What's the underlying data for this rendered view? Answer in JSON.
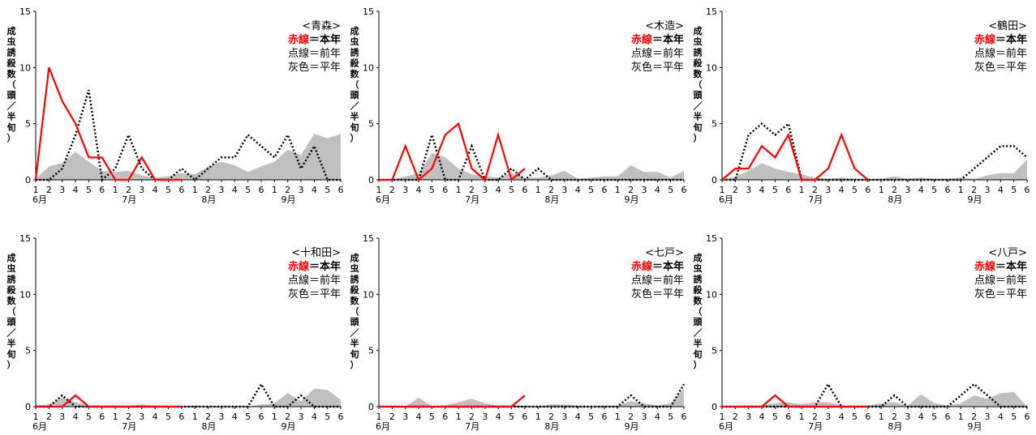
{
  "chart_data": [
    {
      "type": "area",
      "title": "<青森>",
      "ylabel": "成虫誘殺数（頭／半旬）",
      "ylim": [
        0,
        15
      ],
      "yticks": [
        "0",
        "5",
        "10",
        "15"
      ],
      "x_ticks": [
        "1",
        "2",
        "3",
        "4",
        "5",
        "6",
        "1",
        "2",
        "3",
        "4",
        "5",
        "6",
        "1",
        "2",
        "3",
        "4",
        "5",
        "6",
        "1",
        "2",
        "3",
        "4",
        "5",
        "6"
      ],
      "months": [
        "6月",
        "7月",
        "8月",
        "9月"
      ],
      "legend": {
        "this_year_red": "赤線",
        "this_year_eq": "＝本年",
        "last_year": "点線＝前年",
        "normal": "灰色＝平年"
      },
      "series": [
        {
          "key": "current",
          "values": [
            0,
            10,
            7,
            5,
            2,
            2,
            0,
            0,
            2,
            0,
            0,
            0
          ]
        },
        {
          "key": "previous",
          "values": [
            0,
            0,
            1,
            4,
            8,
            0,
            1,
            4,
            1,
            0,
            0,
            1,
            0,
            1,
            2,
            2,
            4,
            3,
            2,
            4,
            1,
            3,
            0,
            0
          ]
        },
        {
          "key": "normal",
          "values": [
            0.1,
            1.2,
            1.5,
            2.5,
            1.6,
            0.8,
            0.7,
            0.8,
            0.4,
            0.2,
            0.3,
            0.6,
            0.5,
            1.2,
            1.6,
            1.3,
            0.7,
            1.2,
            1.6,
            2.7,
            2.2,
            4.1,
            3.7,
            4.1
          ]
        }
      ]
    },
    {
      "type": "area",
      "title": "<木造>",
      "ylabel": "成虫誘殺数（頭／半旬）",
      "ylim": [
        0,
        15
      ],
      "yticks": [
        "0",
        "5",
        "10",
        "15"
      ],
      "x_ticks": [
        "1",
        "2",
        "3",
        "4",
        "5",
        "6",
        "1",
        "2",
        "3",
        "4",
        "5",
        "6",
        "1",
        "2",
        "3",
        "4",
        "5",
        "6",
        "1",
        "2",
        "3",
        "4",
        "5",
        "6"
      ],
      "months": [
        "6月",
        "7月",
        "8月",
        "9月"
      ],
      "legend": {
        "this_year_red": "赤線",
        "this_year_eq": "＝本年",
        "last_year": "点線＝前年",
        "normal": "灰色＝平年"
      },
      "series": [
        {
          "key": "current",
          "values": [
            0,
            0,
            3,
            0,
            1,
            4,
            5,
            1,
            0,
            4,
            0,
            1
          ]
        },
        {
          "key": "previous",
          "values": [
            0,
            0,
            0,
            0,
            4,
            0,
            0,
            3,
            0,
            0,
            1,
            0,
            1,
            0,
            0,
            0,
            0,
            0,
            0,
            0,
            0,
            0,
            0,
            0
          ]
        },
        {
          "key": "normal",
          "values": [
            0,
            0,
            0.3,
            0.6,
            2.4,
            2,
            1,
            0.5,
            0.3,
            0.2,
            0.6,
            0.2,
            0.2,
            0.4,
            0.8,
            0.1,
            0.2,
            0.3,
            0.3,
            1.3,
            0.7,
            0.7,
            0.2,
            0.8
          ]
        }
      ]
    },
    {
      "type": "area",
      "title": "<鶴田>",
      "ylabel": "成虫誘殺数（頭／半旬）",
      "ylim": [
        0,
        15
      ],
      "yticks": [
        "0",
        "5",
        "10",
        "15"
      ],
      "x_ticks": [
        "1",
        "2",
        "3",
        "4",
        "5",
        "6",
        "1",
        "2",
        "3",
        "4",
        "5",
        "6",
        "1",
        "2",
        "3",
        "4",
        "5",
        "6",
        "1",
        "2",
        "3",
        "4",
        "5",
        "6"
      ],
      "months": [
        "6月",
        "7月",
        "8月",
        "9月"
      ],
      "legend": {
        "this_year_red": "赤線",
        "this_year_eq": "＝本年",
        "last_year": "点線＝前年",
        "normal": "灰色＝平年"
      },
      "series": [
        {
          "key": "current",
          "values": [
            0,
            1,
            1,
            3,
            2,
            4,
            0,
            0,
            1,
            4,
            1,
            0
          ]
        },
        {
          "key": "previous",
          "values": [
            0,
            0,
            4,
            5,
            4,
            5,
            0,
            0,
            0,
            0,
            0,
            0,
            0,
            0,
            0,
            0,
            0,
            0,
            0,
            1,
            2,
            3,
            3,
            2
          ]
        },
        {
          "key": "normal",
          "values": [
            0,
            0.3,
            0.8,
            1.5,
            1,
            0.7,
            0.5,
            0.2,
            0.1,
            0.2,
            0.1,
            0.1,
            0.1,
            0.3,
            0.1,
            0.2,
            0.1,
            0.1,
            0.2,
            0.1,
            0.4,
            0.6,
            0.6,
            1.8
          ]
        }
      ]
    },
    {
      "type": "area",
      "title": "<十和田>",
      "ylabel": "成虫誘殺数（頭／半旬）",
      "ylim": [
        0,
        15
      ],
      "yticks": [
        "0",
        "5",
        "10",
        "15"
      ],
      "x_ticks": [
        "1",
        "2",
        "3",
        "4",
        "5",
        "6",
        "1",
        "2",
        "3",
        "4",
        "5",
        "6",
        "1",
        "2",
        "3",
        "4",
        "5",
        "6",
        "1",
        "2",
        "3",
        "4",
        "5",
        "6"
      ],
      "months": [
        "6月",
        "7月",
        "8月",
        "9月"
      ],
      "legend": {
        "this_year_red": "赤線",
        "this_year_eq": "＝本年",
        "last_year": "点線＝前年",
        "normal": "灰色＝平年"
      },
      "series": [
        {
          "key": "current",
          "values": [
            0,
            0,
            0,
            1,
            0,
            0,
            0,
            0,
            0,
            0,
            0,
            0
          ]
        },
        {
          "key": "previous",
          "values": [
            0,
            0,
            1,
            0,
            0,
            0,
            0,
            0,
            0,
            0,
            0,
            0,
            0,
            0,
            0,
            0,
            0,
            2,
            0,
            0,
            1,
            0,
            0,
            0
          ]
        },
        {
          "key": "normal",
          "values": [
            0.1,
            0.2,
            0.8,
            0.4,
            0.1,
            0.1,
            0.1,
            0.1,
            0.2,
            0.1,
            0.1,
            0,
            0.1,
            0,
            0,
            0,
            0,
            0.2,
            0.3,
            1.2,
            0.5,
            1.6,
            1.5,
            0.6
          ]
        }
      ]
    },
    {
      "type": "area",
      "title": "<七戸>",
      "ylabel": "成虫誘殺数（頭／半旬）",
      "ylim": [
        0,
        15
      ],
      "yticks": [
        "0",
        "5",
        "10",
        "15"
      ],
      "x_ticks": [
        "1",
        "2",
        "3",
        "4",
        "5",
        "6",
        "1",
        "2",
        "3",
        "4",
        "5",
        "6",
        "1",
        "2",
        "3",
        "4",
        "5",
        "6",
        "1",
        "2",
        "3",
        "4",
        "5",
        "6"
      ],
      "months": [
        "6月",
        "7月",
        "8月",
        "9月"
      ],
      "legend": {
        "this_year_red": "赤線",
        "this_year_eq": "＝本年",
        "last_year": "点線＝前年",
        "normal": "灰色＝平年"
      },
      "series": [
        {
          "key": "current",
          "values": [
            0,
            0,
            0,
            0,
            0,
            0,
            0,
            0,
            0,
            0,
            0,
            1
          ]
        },
        {
          "key": "previous",
          "values": [
            0,
            0,
            0,
            0,
            0,
            0,
            0,
            0,
            0,
            0,
            0,
            0,
            0,
            0,
            0,
            0,
            0,
            0,
            0,
            1,
            0,
            0,
            0,
            2
          ]
        },
        {
          "key": "normal",
          "values": [
            0,
            0.1,
            0,
            0.8,
            0,
            0.1,
            0.4,
            0.7,
            0.3,
            0.1,
            0.1,
            0.1,
            0,
            0.2,
            0.2,
            0.1,
            0,
            0.1,
            0.1,
            0.5,
            0.3,
            0.1,
            0.3,
            1.6
          ]
        }
      ]
    },
    {
      "type": "area",
      "title": "<八戸>",
      "ylabel": "成虫誘殺数（頭／半旬）",
      "ylim": [
        0,
        15
      ],
      "yticks": [
        "0",
        "5",
        "10",
        "15"
      ],
      "x_ticks": [
        "1",
        "2",
        "3",
        "4",
        "5",
        "6",
        "1",
        "2",
        "3",
        "4",
        "5",
        "6",
        "1",
        "2",
        "3",
        "4",
        "5",
        "6",
        "1",
        "2",
        "3",
        "4",
        "5",
        "6"
      ],
      "months": [
        "6月",
        "7月",
        "8月",
        "9月"
      ],
      "legend": {
        "this_year_red": "赤線",
        "this_year_eq": "＝本年",
        "last_year": "点線＝前年",
        "normal": "灰色＝平年"
      },
      "series": [
        {
          "key": "current",
          "values": [
            0,
            0,
            0,
            0,
            1,
            0,
            0,
            0,
            0,
            0,
            0,
            0
          ]
        },
        {
          "key": "previous",
          "values": [
            0,
            0,
            0,
            0,
            0,
            0,
            0,
            0,
            2,
            0,
            0,
            0,
            0,
            1,
            0,
            0,
            0,
            0,
            1,
            2,
            1,
            0,
            0,
            0
          ]
        },
        {
          "key": "normal",
          "values": [
            0,
            0.1,
            0.1,
            0.1,
            0.3,
            0.4,
            0.2,
            0.4,
            0.4,
            0.1,
            0.1,
            0.1,
            0.3,
            0.4,
            0.1,
            1.1,
            0.3,
            0.1,
            0.3,
            1,
            0.7,
            1.2,
            1.3,
            0
          ]
        }
      ]
    }
  ]
}
